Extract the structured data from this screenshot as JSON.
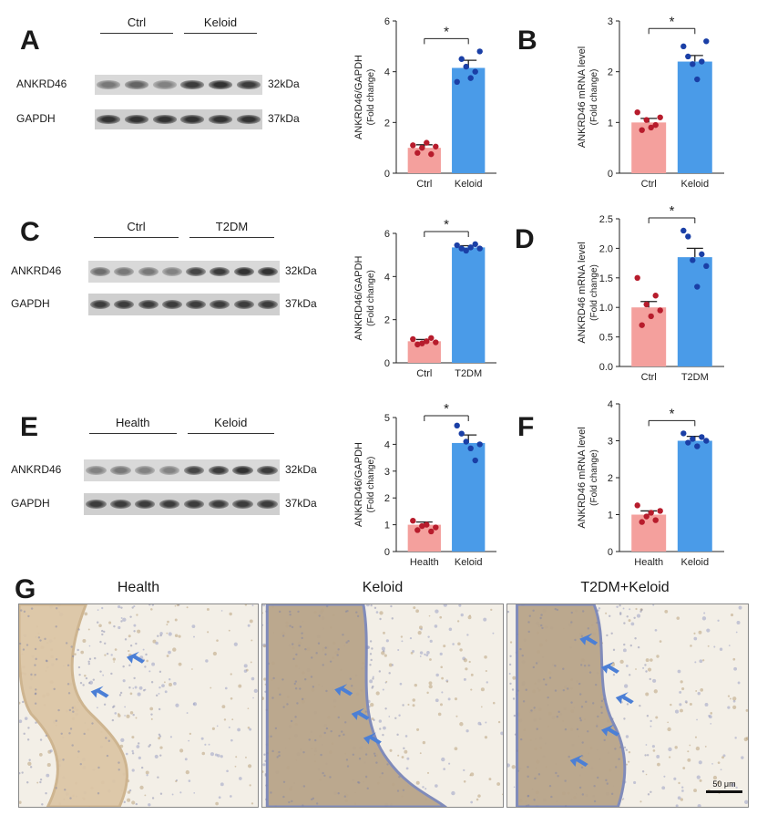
{
  "panels": {
    "A": {
      "letter": "A",
      "blot": {
        "groups": [
          "Ctrl",
          "Keloid"
        ],
        "rows": [
          {
            "protein": "ANKRD46",
            "kda": "32kDa",
            "intensity": [
              0.55,
              0.65,
              0.5,
              0.85,
              0.9,
              0.85
            ]
          },
          {
            "protein": "GAPDH",
            "kda": "37kDa",
            "intensity": [
              0.9,
              0.9,
              0.9,
              0.9,
              0.9,
              0.9
            ]
          }
        ]
      }
    },
    "B": {
      "letter": "B"
    },
    "C": {
      "letter": "C",
      "blot": {
        "groups": [
          "Ctrl",
          "T2DM"
        ],
        "rows": [
          {
            "protein": "ANKRD46",
            "kda": "32kDa",
            "intensity": [
              0.6,
              0.55,
              0.55,
              0.5,
              0.8,
              0.85,
              0.9,
              0.9
            ]
          },
          {
            "protein": "GAPDH",
            "kda": "37kDa",
            "intensity": [
              0.85,
              0.85,
              0.85,
              0.85,
              0.85,
              0.85,
              0.85,
              0.85
            ]
          }
        ]
      }
    },
    "D": {
      "letter": "D"
    },
    "E": {
      "letter": "E",
      "blot": {
        "groups": [
          "Health",
          "Keloid"
        ],
        "rows": [
          {
            "protein": "ANKRD46",
            "kda": "32kDa",
            "intensity": [
              0.5,
              0.55,
              0.5,
              0.5,
              0.8,
              0.85,
              0.9,
              0.85
            ]
          },
          {
            "protein": "GAPDH",
            "kda": "37kDa",
            "intensity": [
              0.85,
              0.85,
              0.85,
              0.85,
              0.85,
              0.85,
              0.85,
              0.85
            ]
          }
        ]
      }
    },
    "F": {
      "letter": "F"
    },
    "G": {
      "letter": "G",
      "images": [
        {
          "title": "Health",
          "arrows": 2,
          "stain": "light"
        },
        {
          "title": "Keloid",
          "arrows": 3,
          "stain": "dark"
        },
        {
          "title": "T2DM+Keloid",
          "arrows": 5,
          "stain": "dark"
        }
      ],
      "scale_bar": "50 μm"
    }
  },
  "chart_data": [
    {
      "id": "A-quant",
      "type": "bar",
      "categories": [
        "Ctrl",
        "Keloid"
      ],
      "values": [
        1.0,
        4.15
      ],
      "errors": [
        0.12,
        0.3
      ],
      "points": [
        [
          1.1,
          0.8,
          1.0,
          1.2,
          0.75,
          1.05
        ],
        [
          3.6,
          4.5,
          4.2,
          3.75,
          4.0,
          4.8
        ]
      ],
      "ylabel": "ANKRD46/GAPDH",
      "ylabel2": "(Fold change)",
      "ylim": [
        0,
        6
      ],
      "yticks": [
        0,
        2,
        4,
        6
      ],
      "significance": "*",
      "colors": [
        "#f4a09d",
        "#4a9be8"
      ]
    },
    {
      "id": "B-mrna",
      "type": "bar",
      "categories": [
        "Ctrl",
        "Keloid"
      ],
      "values": [
        1.0,
        2.2
      ],
      "errors": [
        0.08,
        0.12
      ],
      "points": [
        [
          1.2,
          0.85,
          1.05,
          0.9,
          0.95,
          1.1
        ],
        [
          2.5,
          2.3,
          2.15,
          1.85,
          2.2,
          2.6
        ]
      ],
      "ylabel": "ANKRD46 mRNA level",
      "ylabel2": "(Fold change)",
      "ylim": [
        0,
        3
      ],
      "yticks": [
        0,
        1,
        2,
        3
      ],
      "significance": "*",
      "colors": [
        "#f4a09d",
        "#4a9be8"
      ]
    },
    {
      "id": "C-quant",
      "type": "bar",
      "categories": [
        "Ctrl",
        "T2DM"
      ],
      "values": [
        1.0,
        5.35
      ],
      "errors": [
        0.08,
        0.08
      ],
      "points": [
        [
          1.1,
          0.85,
          0.9,
          1.0,
          1.15,
          0.95
        ],
        [
          5.45,
          5.3,
          5.2,
          5.35,
          5.5,
          5.3
        ]
      ],
      "ylabel": "ANKRD46/GAPDH",
      "ylabel2": "(Fold change)",
      "ylim": [
        0,
        6
      ],
      "yticks": [
        0,
        2,
        4,
        6
      ],
      "significance": "*",
      "colors": [
        "#f4a09d",
        "#4a9be8"
      ]
    },
    {
      "id": "D-mrna",
      "type": "bar",
      "categories": [
        "Ctrl",
        "T2DM"
      ],
      "values": [
        1.0,
        1.85
      ],
      "errors": [
        0.1,
        0.15
      ],
      "points": [
        [
          1.5,
          0.7,
          1.05,
          0.85,
          1.2,
          0.95
        ],
        [
          2.3,
          2.2,
          1.8,
          1.35,
          1.9,
          1.7
        ]
      ],
      "ylabel": "ANKRD46 mRNA level",
      "ylabel2": "(Fold change)",
      "ylim": [
        0,
        2.5
      ],
      "yticks": [
        0.0,
        0.5,
        1.0,
        1.5,
        2.0,
        2.5
      ],
      "significance": "*",
      "colors": [
        "#f4a09d",
        "#4a9be8"
      ]
    },
    {
      "id": "E-quant",
      "type": "bar",
      "categories": [
        "Health",
        "Keloid"
      ],
      "values": [
        1.0,
        4.05
      ],
      "errors": [
        0.1,
        0.3
      ],
      "points": [
        [
          1.15,
          0.8,
          0.95,
          1.0,
          0.75,
          0.9
        ],
        [
          4.7,
          4.4,
          4.1,
          3.85,
          3.4,
          4.0
        ]
      ],
      "ylabel": "ANKRD46/GAPDH",
      "ylabel2": "(Fold change)",
      "ylim": [
        0,
        5
      ],
      "yticks": [
        0,
        1,
        2,
        3,
        4,
        5
      ],
      "significance": "*",
      "colors": [
        "#f4a09d",
        "#4a9be8"
      ]
    },
    {
      "id": "F-mrna",
      "type": "bar",
      "categories": [
        "Health",
        "Keloid"
      ],
      "values": [
        1.0,
        3.0
      ],
      "errors": [
        0.1,
        0.12
      ],
      "points": [
        [
          1.25,
          0.8,
          0.95,
          1.05,
          0.85,
          1.1
        ],
        [
          3.2,
          2.95,
          3.05,
          2.85,
          3.1,
          3.0
        ]
      ],
      "ylabel": "ANKRD46 mRNA level",
      "ylabel2": "(Fold change)",
      "ylim": [
        0,
        4
      ],
      "yticks": [
        0,
        1,
        2,
        3,
        4
      ],
      "significance": "*",
      "colors": [
        "#f4a09d",
        "#4a9be8"
      ]
    }
  ]
}
